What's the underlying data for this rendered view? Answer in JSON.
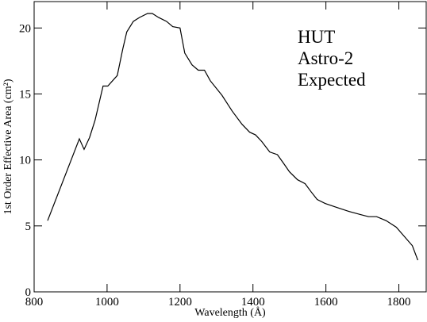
{
  "chart_data": {
    "type": "line",
    "xlabel": "Wavelength (Å)",
    "ylabel": "1st Order Effective Area (cm²)",
    "annotation": [
      "HUT",
      "Astro-2",
      "Expected"
    ],
    "xlim": [
      800,
      1875
    ],
    "ylim": [
      0,
      22
    ],
    "xticks": [
      800,
      1000,
      1200,
      1400,
      1600,
      1800
    ],
    "yticks": [
      0,
      5,
      10,
      15,
      20
    ],
    "color": "#000000",
    "x": [
      837,
      924,
      937,
      952,
      967,
      989,
      1002,
      1028,
      1043,
      1054,
      1072,
      1089,
      1111,
      1124,
      1141,
      1163,
      1180,
      1200,
      1213,
      1233,
      1250,
      1267,
      1283,
      1315,
      1343,
      1370,
      1391,
      1407,
      1424,
      1446,
      1467,
      1485,
      1500,
      1522,
      1543,
      1559,
      1576,
      1598,
      1630,
      1663,
      1696,
      1717,
      1739,
      1765,
      1793,
      1815,
      1837,
      1852
    ],
    "values": [
      5.4,
      11.6,
      10.8,
      11.7,
      13.0,
      15.6,
      15.6,
      16.4,
      18.4,
      19.7,
      20.5,
      20.8,
      21.1,
      21.1,
      20.8,
      20.5,
      20.1,
      20.0,
      18.1,
      17.2,
      16.8,
      16.8,
      16.0,
      14.9,
      13.7,
      12.7,
      12.1,
      11.9,
      11.4,
      10.6,
      10.4,
      9.7,
      9.1,
      8.5,
      8.2,
      7.6,
      7.0,
      6.7,
      6.4,
      6.1,
      5.85,
      5.7,
      5.7,
      5.4,
      4.9,
      4.2,
      3.5,
      2.4
    ]
  }
}
